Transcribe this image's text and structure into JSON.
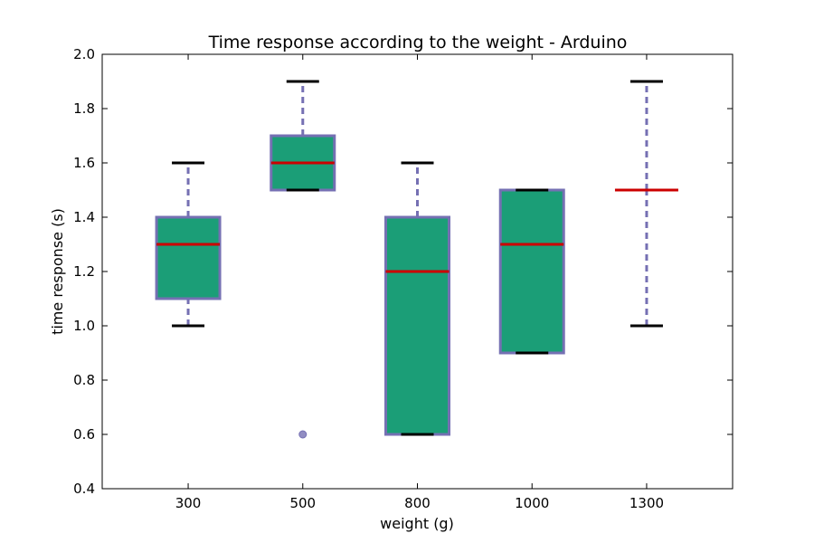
{
  "chart_data": {
    "type": "box",
    "title": "Time response according to the weight - Arduino",
    "xlabel": "weight (g)",
    "ylabel": "time response (s)",
    "ylim": [
      0.4,
      2.0
    ],
    "yticks": [
      "0.4",
      "0.6",
      "0.8",
      "1.0",
      "1.2",
      "1.4",
      "1.6",
      "1.8",
      "2.0"
    ],
    "categories": [
      "300",
      "500",
      "800",
      "1000",
      "1300"
    ],
    "boxes": [
      {
        "category": "300",
        "whisker_low": 1.0,
        "q1": 1.1,
        "median": 1.3,
        "q3": 1.4,
        "whisker_high": 1.6,
        "outliers": []
      },
      {
        "category": "500",
        "whisker_low": 1.5,
        "q1": 1.5,
        "median": 1.6,
        "q3": 1.7,
        "whisker_high": 1.9,
        "outliers": [
          0.6
        ]
      },
      {
        "category": "800",
        "whisker_low": 0.6,
        "q1": 0.6,
        "median": 1.2,
        "q3": 1.4,
        "whisker_high": 1.6,
        "outliers": []
      },
      {
        "category": "1000",
        "whisker_low": 0.9,
        "q1": 0.9,
        "median": 1.3,
        "q3": 1.5,
        "whisker_high": 1.5,
        "outliers": []
      },
      {
        "category": "1300",
        "whisker_low": 1.0,
        "q1": 1.5,
        "median": 1.5,
        "q3": 1.5,
        "whisker_high": 1.9,
        "outliers": []
      }
    ],
    "grid": false,
    "colors": {
      "box_fill": "#1b9e77",
      "box_edge": "#7570b3",
      "whisker": "#7570b3",
      "cap": "#000000",
      "median": "#cc0000",
      "outlier": "#7570b3"
    }
  }
}
